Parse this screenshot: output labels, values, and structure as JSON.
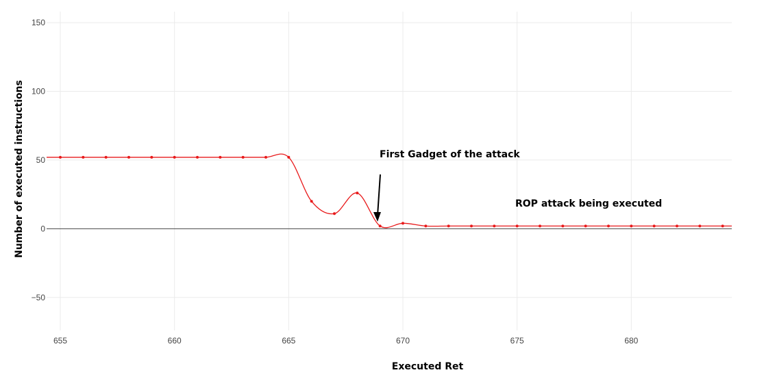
{
  "chart_data": {
    "type": "line",
    "xlabel": "Executed Ret",
    "ylabel": "Number of executed instructions",
    "xlim": [
      654.4,
      684.4
    ],
    "ylim": [
      -74,
      158
    ],
    "x_ticks": [
      655,
      660,
      665,
      670,
      675,
      680
    ],
    "y_ticks": [
      -50,
      0,
      50,
      100,
      150
    ],
    "grid": true,
    "zero_line": true,
    "line_shape": "spline",
    "series_color": "#e8191a",
    "series": [
      {
        "x": [
          654.4,
          655,
          656,
          657,
          658,
          659,
          660,
          661,
          662,
          663,
          664,
          665,
          666,
          667,
          668,
          669,
          670,
          671,
          672,
          673,
          674,
          675,
          676,
          677,
          678,
          679,
          680,
          681,
          682,
          683,
          684,
          684.4
        ],
        "y": [
          52,
          52,
          52,
          52,
          52,
          52,
          52,
          52,
          52,
          52,
          52,
          52,
          20,
          11,
          26,
          2,
          4,
          2,
          2,
          2,
          2,
          2,
          2,
          2,
          2,
          2,
          2,
          2,
          2,
          2,
          2,
          2
        ]
      }
    ],
    "annotations": [
      {
        "text": "First Gadget of the attack",
        "x": 669,
        "y": 2,
        "arrow": true
      },
      {
        "text": "ROP attack being executed"
      }
    ]
  }
}
